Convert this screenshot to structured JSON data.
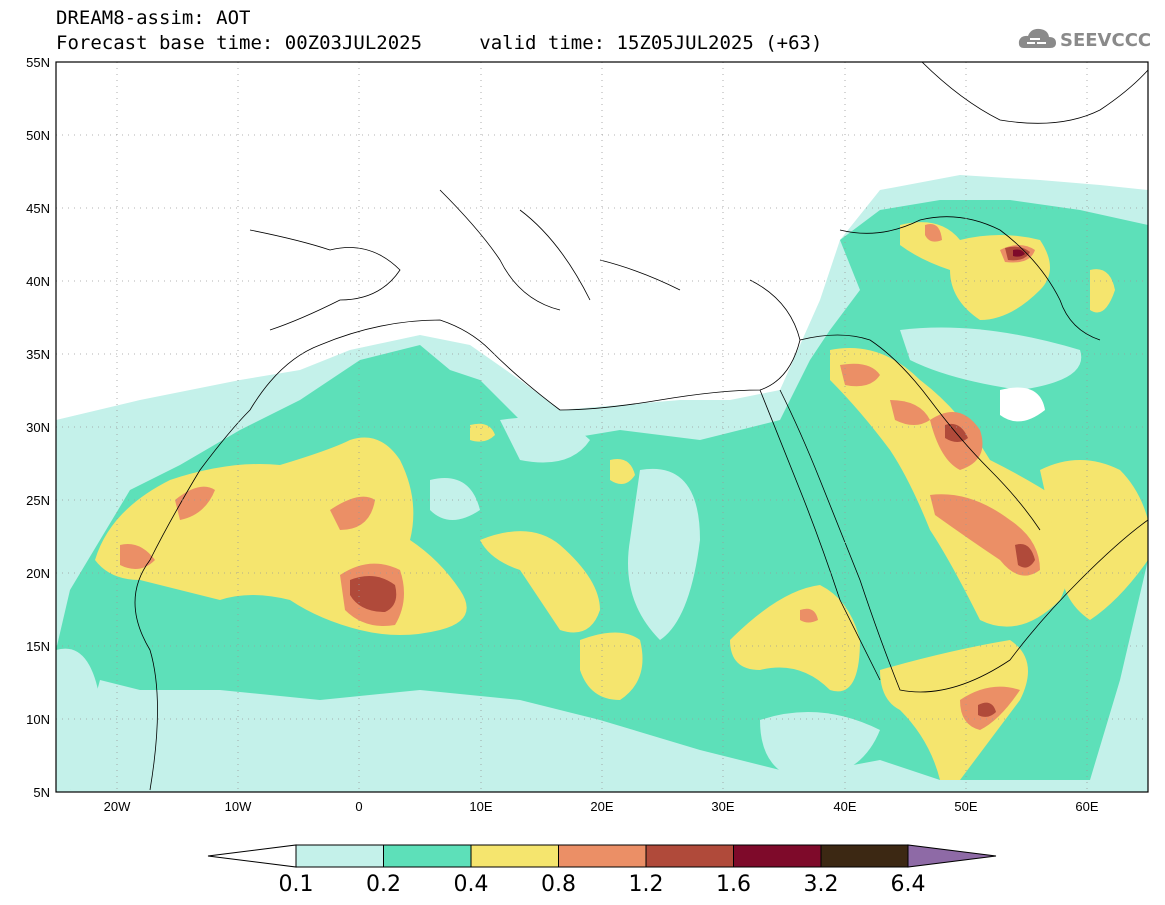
{
  "title": {
    "product": "DREAM8-assim: AOT",
    "base_time_label": "Forecast base time: 00Z03JUL2025",
    "valid_time_label": "valid time: 15Z05JUL2025 (+63)"
  },
  "logo": {
    "text": "SEEVCCC",
    "icon": "cloud-icon"
  },
  "map": {
    "lat_labels": [
      "55N",
      "50N",
      "45N",
      "40N",
      "35N",
      "30N",
      "25N",
      "20N",
      "15N",
      "10N",
      "5N"
    ],
    "lon_labels": [
      "20W",
      "10W",
      "0",
      "10E",
      "20E",
      "30E",
      "40E",
      "50E",
      "60E"
    ],
    "lat_range": [
      5,
      55
    ],
    "lon_range": [
      -25,
      65
    ],
    "grid": "dotted"
  },
  "colorbar": {
    "labels": [
      "0.1",
      "0.2",
      "0.4",
      "0.8",
      "1.2",
      "1.6",
      "3.2",
      "6.4"
    ],
    "colors": [
      "#c4f1ea",
      "#5de0b9",
      "#f5e56e",
      "#eb8f66",
      "#b04a3a",
      "#7e0a2a",
      "#3c2813",
      "#8e6aa6"
    ],
    "under_color": "#ffffff"
  }
}
